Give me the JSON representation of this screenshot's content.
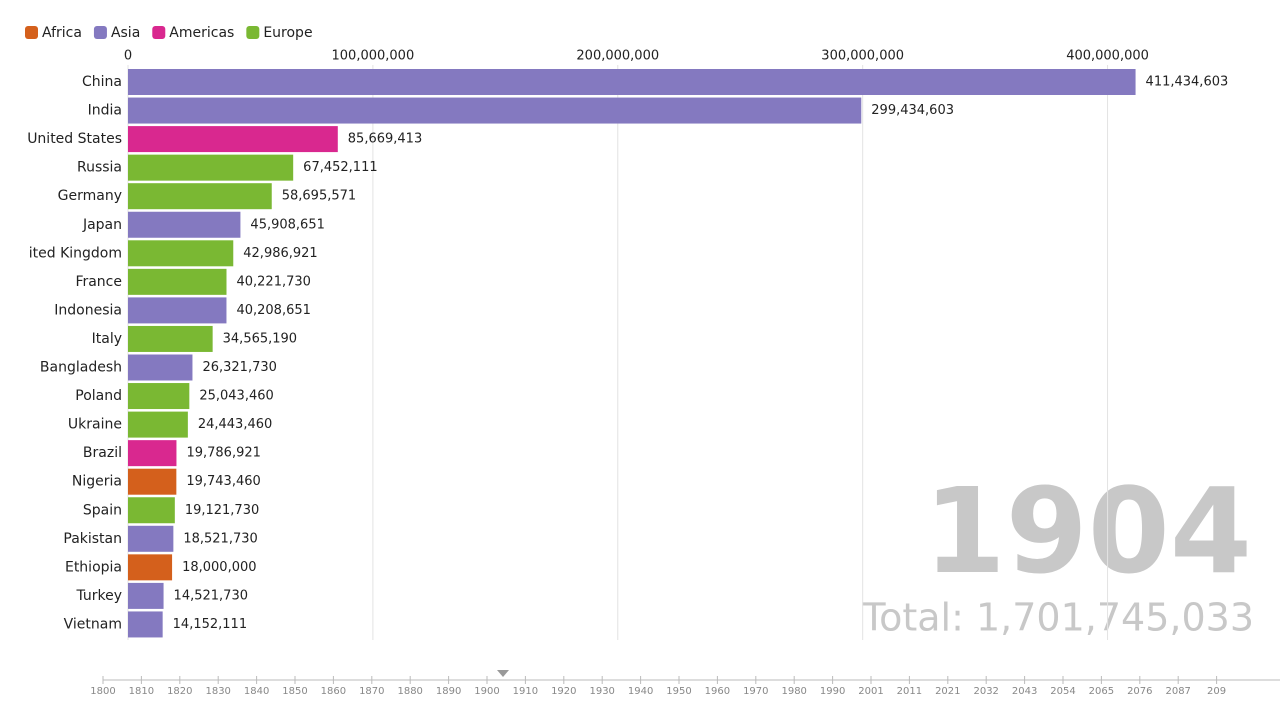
{
  "chart_data": {
    "type": "hbar",
    "legend": [
      {
        "name": "Africa",
        "color": "#d4601c"
      },
      {
        "name": "Asia",
        "color": "#8479c0"
      },
      {
        "name": "Americas",
        "color": "#d9288f"
      },
      {
        "name": "Europe",
        "color": "#7ab833"
      }
    ],
    "categories": [
      "China",
      "India",
      "United States",
      "Russia",
      "Germany",
      "Japan",
      "ited Kingdom",
      "France",
      "Indonesia",
      "Italy",
      "Bangladesh",
      "Poland",
      "Ukraine",
      "Brazil",
      "Nigeria",
      "Spain",
      "Pakistan",
      "Ethiopia",
      "Turkey",
      "Vietnam"
    ],
    "values": [
      411434603,
      299434603,
      85669413,
      67452111,
      58695571,
      45908651,
      42986921,
      40221730,
      40208651,
      34565190,
      26321730,
      25043460,
      24443460,
      19786921,
      19743460,
      19121730,
      18521730,
      18000000,
      14521730,
      14152111
    ],
    "value_labels": [
      "411,434,603",
      "299,434,603",
      "85,669,413",
      "67,452,111",
      "58,695,571",
      "45,908,651",
      "42,986,921",
      "40,221,730",
      "40,208,651",
      "34,565,190",
      "26,321,730",
      "25,043,460",
      "24,443,460",
      "19,786,921",
      "19,743,460",
      "19,121,730",
      "18,521,730",
      "18,000,000",
      "14,521,730",
      "14,152,111"
    ],
    "colors": [
      "#8479c0",
      "#8479c0",
      "#d9288f",
      "#7ab833",
      "#7ab833",
      "#8479c0",
      "#7ab833",
      "#7ab833",
      "#8479c0",
      "#7ab833",
      "#8479c0",
      "#7ab833",
      "#7ab833",
      "#d9288f",
      "#d4601c",
      "#7ab833",
      "#8479c0",
      "#d4601c",
      "#8479c0",
      "#8479c0"
    ],
    "xlim": [
      0,
      450000000
    ],
    "xticks": [
      0,
      {
        "value": 100000000,
        "label": "100,000,000"
      },
      {
        "value": 200000000,
        "label": "200,000,000"
      },
      {
        "value": 300000000,
        "label": "300,000,000"
      },
      {
        "value": 400000000,
        "label": "400,000,000"
      }
    ],
    "grid": true,
    "year": "1904",
    "total": "Total: 1,701,745,033",
    "timeline": [
      "1800",
      "1810",
      "1820",
      "1830",
      "1840",
      "1850",
      "1860",
      "1870",
      "1880",
      "1890",
      "1900",
      "1910",
      "1920",
      "1930",
      "1940",
      "1950",
      "1960",
      "1970",
      "1980",
      "1990",
      "2001",
      "2011",
      "2021",
      "2032",
      "2043",
      "2054",
      "2065",
      "2076",
      "2087",
      "209"
    ]
  }
}
